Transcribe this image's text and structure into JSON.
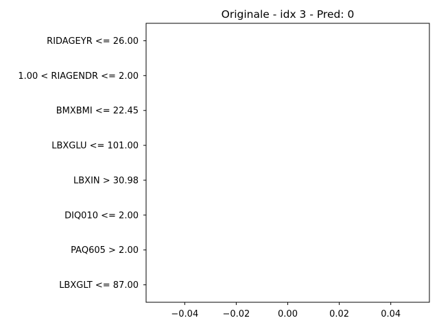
{
  "chart_data": {
    "type": "bar",
    "orientation": "horizontal",
    "title": "Originale - idx 3 - Pred: 0",
    "xlabel": "",
    "ylabel": "",
    "categories": [
      "RIDAGEYR <= 26.00",
      "1.00 < RIAGENDR <= 2.00",
      "BMXBMI <= 22.45",
      "LBXGLU <= 101.00",
      "LBXIN > 30.98",
      "DIQ010 <= 2.00",
      "PAQ605 > 2.00",
      "LBXGLT <= 87.00"
    ],
    "values": [
      0,
      0,
      0,
      0,
      0,
      0,
      0,
      0
    ],
    "xlim": [
      -0.055,
      0.055
    ],
    "xticks": [
      -0.04,
      -0.02,
      0.0,
      0.02,
      0.04
    ],
    "xtick_labels": [
      "−0.04",
      "−0.02",
      "0.00",
      "0.02",
      "0.04"
    ],
    "grid": false,
    "legend": "none"
  }
}
